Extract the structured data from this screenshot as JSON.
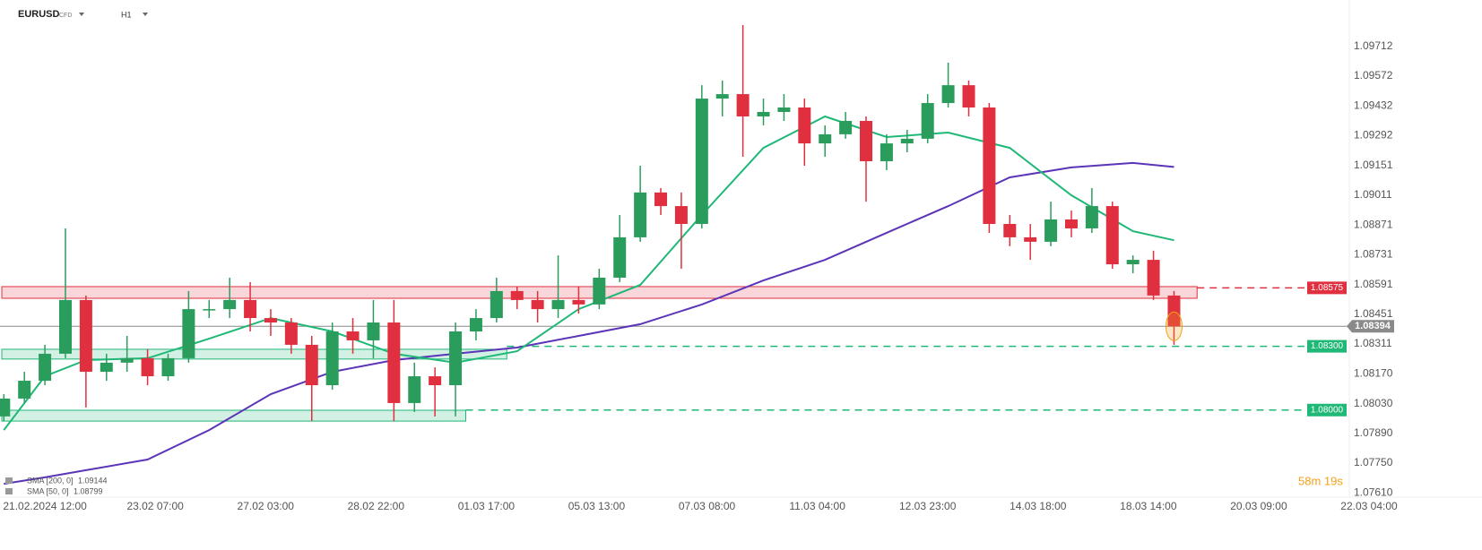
{
  "chart_data": {
    "type": "candlestick",
    "symbol": "EURUSD",
    "instrument": "CFD",
    "timeframe": "H1",
    "timer": "58m 19s",
    "colors": {
      "up": "#2a9d5c",
      "down": "#e0303f"
    },
    "xlim": [
      -17.5,
      516
    ],
    "ylim": [
      1.0759,
      1.0993
    ],
    "xticks": [
      {
        "value": 0,
        "label": "21.02.2024 12:00"
      },
      {
        "value": 43,
        "label": "23.02 07:00"
      },
      {
        "value": 86,
        "label": "27.02 03:00"
      },
      {
        "value": 129,
        "label": "28.02 22:00"
      },
      {
        "value": 172,
        "label": "01.03 17:00"
      },
      {
        "value": 215,
        "label": "05.03 13:00"
      },
      {
        "value": 258,
        "label": "07.03 08:00"
      },
      {
        "value": 301,
        "label": "11.03 04:00"
      },
      {
        "value": 344,
        "label": "12.03 23:00"
      },
      {
        "value": 387,
        "label": "14.03 18:00"
      },
      {
        "value": 430,
        "label": "18.03 14:00"
      },
      {
        "value": 473,
        "label": "20.03 09:00"
      },
      {
        "value": 516,
        "label": "22.03 04:00"
      }
    ],
    "yticks": [
      {
        "value": 1.0761,
        "label": "1.07610"
      },
      {
        "value": 1.0775,
        "label": "1.07750"
      },
      {
        "value": 1.0789,
        "label": "1.07890"
      },
      {
        "value": 1.0803,
        "label": "1.08030"
      },
      {
        "value": 1.0817,
        "label": "1.08170"
      },
      1.08311,
      1.08451,
      1.08591,
      1.08731,
      1.08871,
      1.09011,
      1.09151,
      1.09292,
      1.09432,
      1.09572,
      1.09712
    ],
    "x": [
      -16,
      -8,
      0,
      8,
      16,
      24,
      32,
      40,
      48,
      56,
      64,
      72,
      80,
      88,
      96,
      104,
      112,
      120,
      128,
      136,
      144,
      152,
      160,
      168,
      176,
      184,
      192,
      200,
      208,
      216,
      224,
      232,
      240,
      248,
      256,
      264,
      272,
      280,
      288,
      296,
      304,
      312,
      320,
      328,
      336,
      344,
      352,
      360,
      368,
      376,
      384,
      392,
      400,
      408,
      416,
      424,
      432,
      440
    ],
    "open": [
      1.0797,
      1.08054,
      1.08138,
      1.08265,
      1.08518,
      1.0818,
      1.08223,
      1.08244,
      1.08159,
      1.08244,
      1.08475,
      1.08475,
      1.08518,
      1.08433,
      1.08412,
      1.08307,
      1.08117,
      1.0837,
      1.08328,
      1.08412,
      1.08033,
      1.08159,
      1.08117,
      1.0837,
      1.08433,
      1.0856,
      1.08518,
      1.08475,
      1.08518,
      1.08497,
      1.08623,
      1.08813,
      1.09024,
      1.0896,
      1.08876,
      1.09466,
      1.09487,
      1.09382,
      1.09403,
      1.09424,
      1.09255,
      1.09298,
      1.09361,
      1.09171,
      1.09255,
      1.09277,
      1.09445,
      1.09529,
      1.09424,
      1.08876,
      1.08813,
      1.08792,
      1.08897,
      1.08855,
      1.0896,
      1.08686,
      1.08707,
      1.08539
    ],
    "high": [
      1.08075,
      1.0818,
      1.08307,
      1.08855,
      1.08539,
      1.08265,
      1.08349,
      1.08286,
      1.08265,
      1.0856,
      1.08518,
      1.08623,
      1.08602,
      1.08475,
      1.08433,
      1.08349,
      1.08412,
      1.08433,
      1.08518,
      1.08518,
      1.08223,
      1.08201,
      1.08412,
      1.08475,
      1.08623,
      1.08581,
      1.0856,
      1.08728,
      1.08581,
      1.08665,
      1.08918,
      1.0915,
      1.09045,
      1.09024,
      1.09529,
      1.09551,
      1.09812,
      1.09466,
      1.09487,
      1.09466,
      1.0934,
      1.09403,
      1.09382,
      1.09298,
      1.09319,
      1.09487,
      1.09635,
      1.09551,
      1.09445,
      1.08918,
      1.08876,
      1.08981,
      1.08939,
      1.09045,
      1.08981,
      1.08728,
      1.0875,
      1.0856
    ],
    "low": [
      1.07948,
      1.08033,
      1.08117,
      1.08244,
      1.08012,
      1.08138,
      1.0818,
      1.08117,
      1.08138,
      1.08223,
      1.08433,
      1.08433,
      1.0837,
      1.08349,
      1.08265,
      1.07948,
      1.08096,
      1.08265,
      1.08244,
      1.07948,
      1.07991,
      1.0797,
      1.0797,
      1.08328,
      1.08412,
      1.08475,
      1.08412,
      1.08433,
      1.08454,
      1.08475,
      1.08602,
      1.08792,
      1.08918,
      1.08665,
      1.08855,
      1.09382,
      1.09192,
      1.0934,
      1.09361,
      1.0915,
      1.09192,
      1.09277,
      1.08981,
      1.09129,
      1.09213,
      1.09255,
      1.09424,
      1.09382,
      1.08834,
      1.08771,
      1.08707,
      1.08771,
      1.08813,
      1.08834,
      1.08665,
      1.08644,
      1.08518,
      1.08307
    ],
    "close": [
      1.08054,
      1.08138,
      1.08265,
      1.08518,
      1.0818,
      1.08223,
      1.08244,
      1.08159,
      1.08244,
      1.08475,
      1.08475,
      1.08518,
      1.08433,
      1.08412,
      1.08307,
      1.08117,
      1.0837,
      1.08328,
      1.08412,
      1.08033,
      1.08159,
      1.08117,
      1.0837,
      1.08433,
      1.0856,
      1.08518,
      1.08475,
      1.08518,
      1.08497,
      1.08623,
      1.08813,
      1.09024,
      1.0896,
      1.08876,
      1.09466,
      1.09487,
      1.09382,
      1.09403,
      1.09424,
      1.09255,
      1.09298,
      1.09361,
      1.09171,
      1.09255,
      1.09277,
      1.09445,
      1.09529,
      1.09424,
      1.08876,
      1.08813,
      1.08792,
      1.08897,
      1.08855,
      1.0896,
      1.08686,
      1.08707,
      1.08539,
      1.08394
    ],
    "series": [
      {
        "name": "SMA [200, 0]",
        "color": "#5b34b8",
        "x": [
          -16,
          0,
          16,
          40,
          64,
          88,
          112,
          136,
          160,
          184,
          208,
          232,
          256,
          280,
          304,
          328,
          352,
          376,
          400,
          424,
          440
        ],
        "values": [
          1.07653,
          1.07683,
          1.07717,
          1.07767,
          1.07906,
          1.08075,
          1.0818,
          1.08235,
          1.08265,
          1.08294,
          1.08349,
          1.08404,
          1.08497,
          1.0861,
          1.08707,
          1.08834,
          1.0896,
          1.09095,
          1.09142,
          1.09163,
          1.09144
        ]
      },
      {
        "name": "SMA [50, 0]",
        "color": "#1fb877",
        "x": [
          -16,
          0,
          16,
          40,
          64,
          88,
          112,
          136,
          160,
          184,
          208,
          232,
          256,
          280,
          304,
          328,
          352,
          376,
          400,
          424,
          440
        ],
        "values": [
          1.07906,
          1.08159,
          1.08235,
          1.08244,
          1.08336,
          1.08433,
          1.0837,
          1.08265,
          1.08223,
          1.08277,
          1.08475,
          1.08589,
          1.08918,
          1.09234,
          1.09382,
          1.09285,
          1.09306,
          1.09234,
          1.09011,
          1.08842,
          1.08799
        ]
      }
    ],
    "zones": [
      {
        "low": 1.08526,
        "high": 1.08581,
        "x_end": 449,
        "color": "#e0303f"
      },
      {
        "low": 1.0824,
        "high": 1.08286,
        "x_end": 180,
        "color": "#1fb877"
      },
      {
        "low": 1.07948,
        "high": 1.07999,
        "x_end": 164,
        "color": "#1fb877"
      }
    ],
    "levels": [
      {
        "value": 1.08575,
        "color": "#e0303f"
      },
      {
        "value": {
          "value": 1.083,
          "label": "1.08300"
        },
        "color": "#1fb877"
      },
      {
        "value": {
          "value": 1.08,
          "label": "1.08000"
        },
        "color": "#1fb877"
      }
    ]
  }
}
